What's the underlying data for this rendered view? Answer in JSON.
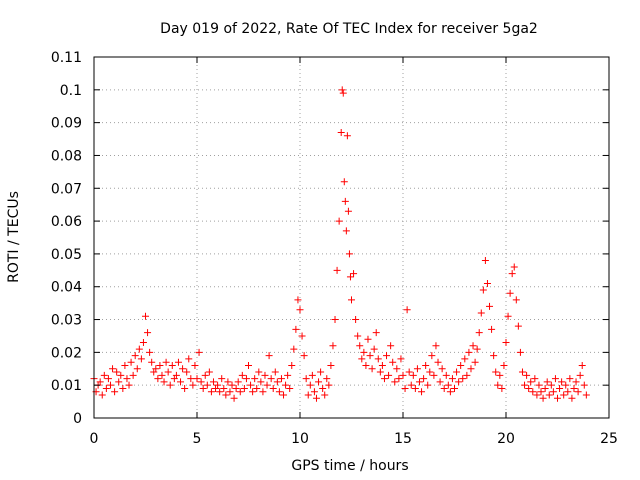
{
  "chart_data": {
    "type": "scatter",
    "title": "Day 019 of 2022, Rate Of TEC Index for receiver 5ga2",
    "xlabel": "GPS time / hours",
    "ylabel": "ROTI / TECUs",
    "xlim": [
      0,
      25
    ],
    "ylim": [
      0,
      0.11
    ],
    "x_ticks": [
      "0",
      "5",
      "10",
      "15",
      "20",
      "25"
    ],
    "y_ticks": [
      "0",
      "0.01",
      "0.02",
      "0.03",
      "0.04",
      "0.05",
      "0.06",
      "0.07",
      "0.08",
      "0.09",
      "0.1",
      "0.11"
    ],
    "grid": true,
    "marker": "+",
    "color": "#ff0000",
    "series": [
      {
        "points": [
          [
            0.0,
            0.012
          ],
          [
            0.1,
            0.008
          ],
          [
            0.2,
            0.01
          ],
          [
            0.3,
            0.011
          ],
          [
            0.4,
            0.007
          ],
          [
            0.5,
            0.013
          ],
          [
            0.6,
            0.009
          ],
          [
            0.7,
            0.012
          ],
          [
            0.8,
            0.01
          ],
          [
            0.9,
            0.015
          ],
          [
            1.0,
            0.008
          ],
          [
            1.1,
            0.014
          ],
          [
            1.2,
            0.011
          ],
          [
            1.3,
            0.013
          ],
          [
            1.4,
            0.009
          ],
          [
            1.5,
            0.016
          ],
          [
            1.6,
            0.012
          ],
          [
            1.7,
            0.01
          ],
          [
            1.8,
            0.017
          ],
          [
            1.9,
            0.013
          ],
          [
            2.0,
            0.019
          ],
          [
            2.1,
            0.015
          ],
          [
            2.2,
            0.021
          ],
          [
            2.3,
            0.018
          ],
          [
            2.4,
            0.023
          ],
          [
            2.5,
            0.031
          ],
          [
            2.6,
            0.026
          ],
          [
            2.7,
            0.02
          ],
          [
            2.8,
            0.017
          ],
          [
            2.9,
            0.014
          ],
          [
            3.0,
            0.015
          ],
          [
            3.1,
            0.012
          ],
          [
            3.2,
            0.016
          ],
          [
            3.3,
            0.013
          ],
          [
            3.4,
            0.011
          ],
          [
            3.5,
            0.017
          ],
          [
            3.6,
            0.014
          ],
          [
            3.7,
            0.01
          ],
          [
            3.8,
            0.016
          ],
          [
            3.9,
            0.012
          ],
          [
            4.0,
            0.013
          ],
          [
            4.1,
            0.017
          ],
          [
            4.2,
            0.011
          ],
          [
            4.3,
            0.015
          ],
          [
            4.4,
            0.009
          ],
          [
            4.5,
            0.014
          ],
          [
            4.6,
            0.018
          ],
          [
            4.7,
            0.012
          ],
          [
            4.8,
            0.01
          ],
          [
            4.9,
            0.016
          ],
          [
            5.0,
            0.012
          ],
          [
            5.1,
            0.02
          ],
          [
            5.2,
            0.011
          ],
          [
            5.3,
            0.009
          ],
          [
            5.4,
            0.013
          ],
          [
            5.5,
            0.01
          ],
          [
            5.6,
            0.014
          ],
          [
            5.7,
            0.008
          ],
          [
            5.8,
            0.011
          ],
          [
            5.9,
            0.009
          ],
          [
            6.0,
            0.01
          ],
          [
            6.1,
            0.008
          ],
          [
            6.2,
            0.012
          ],
          [
            6.3,
            0.009
          ],
          [
            6.4,
            0.007
          ],
          [
            6.5,
            0.011
          ],
          [
            6.6,
            0.008
          ],
          [
            6.7,
            0.01
          ],
          [
            6.8,
            0.006
          ],
          [
            6.9,
            0.009
          ],
          [
            7.0,
            0.011
          ],
          [
            7.1,
            0.008
          ],
          [
            7.2,
            0.013
          ],
          [
            7.3,
            0.009
          ],
          [
            7.4,
            0.012
          ],
          [
            7.5,
            0.016
          ],
          [
            7.6,
            0.01
          ],
          [
            7.7,
            0.008
          ],
          [
            7.8,
            0.012
          ],
          [
            7.9,
            0.009
          ],
          [
            8.0,
            0.014
          ],
          [
            8.1,
            0.011
          ],
          [
            8.2,
            0.008
          ],
          [
            8.3,
            0.013
          ],
          [
            8.4,
            0.01
          ],
          [
            8.5,
            0.019
          ],
          [
            8.6,
            0.012
          ],
          [
            8.7,
            0.009
          ],
          [
            8.8,
            0.014
          ],
          [
            8.9,
            0.011
          ],
          [
            9.0,
            0.008
          ],
          [
            9.1,
            0.012
          ],
          [
            9.2,
            0.007
          ],
          [
            9.3,
            0.01
          ],
          [
            9.4,
            0.013
          ],
          [
            9.5,
            0.009
          ],
          [
            9.6,
            0.016
          ],
          [
            9.7,
            0.021
          ],
          [
            9.8,
            0.027
          ],
          [
            9.9,
            0.036
          ],
          [
            10.0,
            0.033
          ],
          [
            10.1,
            0.025
          ],
          [
            10.2,
            0.019
          ],
          [
            10.3,
            0.012
          ],
          [
            10.4,
            0.007
          ],
          [
            10.5,
            0.01
          ],
          [
            10.6,
            0.013
          ],
          [
            10.7,
            0.008
          ],
          [
            10.8,
            0.006
          ],
          [
            10.9,
            0.011
          ],
          [
            11.0,
            0.014
          ],
          [
            11.1,
            0.009
          ],
          [
            11.2,
            0.007
          ],
          [
            11.3,
            0.012
          ],
          [
            11.4,
            0.01
          ],
          [
            11.5,
            0.016
          ],
          [
            11.6,
            0.022
          ],
          [
            11.7,
            0.03
          ],
          [
            11.8,
            0.045
          ],
          [
            11.9,
            0.06
          ],
          [
            12.0,
            0.087
          ],
          [
            12.05,
            0.1
          ],
          [
            12.1,
            0.099
          ],
          [
            12.15,
            0.072
          ],
          [
            12.2,
            0.066
          ],
          [
            12.25,
            0.057
          ],
          [
            12.3,
            0.086
          ],
          [
            12.35,
            0.063
          ],
          [
            12.4,
            0.05
          ],
          [
            12.45,
            0.043
          ],
          [
            12.5,
            0.036
          ],
          [
            12.6,
            0.044
          ],
          [
            12.7,
            0.03
          ],
          [
            12.8,
            0.025
          ],
          [
            12.9,
            0.022
          ],
          [
            13.0,
            0.018
          ],
          [
            13.1,
            0.02
          ],
          [
            13.2,
            0.016
          ],
          [
            13.3,
            0.024
          ],
          [
            13.4,
            0.019
          ],
          [
            13.5,
            0.015
          ],
          [
            13.6,
            0.021
          ],
          [
            13.7,
            0.026
          ],
          [
            13.8,
            0.018
          ],
          [
            13.9,
            0.014
          ],
          [
            14.0,
            0.016
          ],
          [
            14.1,
            0.012
          ],
          [
            14.2,
            0.019
          ],
          [
            14.3,
            0.013
          ],
          [
            14.4,
            0.022
          ],
          [
            14.5,
            0.017
          ],
          [
            14.6,
            0.011
          ],
          [
            14.7,
            0.015
          ],
          [
            14.8,
            0.012
          ],
          [
            14.9,
            0.018
          ],
          [
            15.0,
            0.013
          ],
          [
            15.1,
            0.009
          ],
          [
            15.2,
            0.033
          ],
          [
            15.3,
            0.014
          ],
          [
            15.4,
            0.01
          ],
          [
            15.5,
            0.013
          ],
          [
            15.6,
            0.009
          ],
          [
            15.7,
            0.015
          ],
          [
            15.8,
            0.011
          ],
          [
            15.9,
            0.008
          ],
          [
            16.0,
            0.012
          ],
          [
            16.1,
            0.016
          ],
          [
            16.2,
            0.01
          ],
          [
            16.3,
            0.014
          ],
          [
            16.4,
            0.019
          ],
          [
            16.5,
            0.013
          ],
          [
            16.6,
            0.022
          ],
          [
            16.7,
            0.017
          ],
          [
            16.8,
            0.011
          ],
          [
            16.9,
            0.015
          ],
          [
            17.0,
            0.009
          ],
          [
            17.1,
            0.013
          ],
          [
            17.2,
            0.01
          ],
          [
            17.3,
            0.008
          ],
          [
            17.4,
            0.012
          ],
          [
            17.5,
            0.009
          ],
          [
            17.6,
            0.014
          ],
          [
            17.7,
            0.011
          ],
          [
            17.8,
            0.016
          ],
          [
            17.9,
            0.012
          ],
          [
            18.0,
            0.018
          ],
          [
            18.1,
            0.013
          ],
          [
            18.2,
            0.02
          ],
          [
            18.3,
            0.015
          ],
          [
            18.4,
            0.022
          ],
          [
            18.5,
            0.017
          ],
          [
            18.6,
            0.021
          ],
          [
            18.7,
            0.026
          ],
          [
            18.8,
            0.032
          ],
          [
            18.9,
            0.039
          ],
          [
            19.0,
            0.048
          ],
          [
            19.1,
            0.041
          ],
          [
            19.2,
            0.034
          ],
          [
            19.3,
            0.027
          ],
          [
            19.4,
            0.019
          ],
          [
            19.5,
            0.014
          ],
          [
            19.6,
            0.01
          ],
          [
            19.7,
            0.013
          ],
          [
            19.8,
            0.009
          ],
          [
            19.9,
            0.016
          ],
          [
            20.0,
            0.023
          ],
          [
            20.1,
            0.031
          ],
          [
            20.2,
            0.038
          ],
          [
            20.3,
            0.044
          ],
          [
            20.4,
            0.046
          ],
          [
            20.5,
            0.036
          ],
          [
            20.6,
            0.028
          ],
          [
            20.7,
            0.02
          ],
          [
            20.8,
            0.014
          ],
          [
            20.9,
            0.01
          ],
          [
            21.0,
            0.013
          ],
          [
            21.1,
            0.009
          ],
          [
            21.2,
            0.011
          ],
          [
            21.3,
            0.008
          ],
          [
            21.4,
            0.012
          ],
          [
            21.5,
            0.007
          ],
          [
            21.6,
            0.01
          ],
          [
            21.7,
            0.008
          ],
          [
            21.8,
            0.006
          ],
          [
            21.9,
            0.009
          ],
          [
            22.0,
            0.011
          ],
          [
            22.1,
            0.007
          ],
          [
            22.2,
            0.01
          ],
          [
            22.3,
            0.008
          ],
          [
            22.4,
            0.012
          ],
          [
            22.5,
            0.006
          ],
          [
            22.6,
            0.009
          ],
          [
            22.7,
            0.011
          ],
          [
            22.8,
            0.007
          ],
          [
            22.9,
            0.01
          ],
          [
            23.0,
            0.008
          ],
          [
            23.1,
            0.012
          ],
          [
            23.2,
            0.006
          ],
          [
            23.3,
            0.009
          ],
          [
            23.4,
            0.011
          ],
          [
            23.5,
            0.008
          ],
          [
            23.6,
            0.013
          ],
          [
            23.7,
            0.016
          ],
          [
            23.8,
            0.01
          ],
          [
            23.9,
            0.007
          ]
        ]
      }
    ]
  }
}
